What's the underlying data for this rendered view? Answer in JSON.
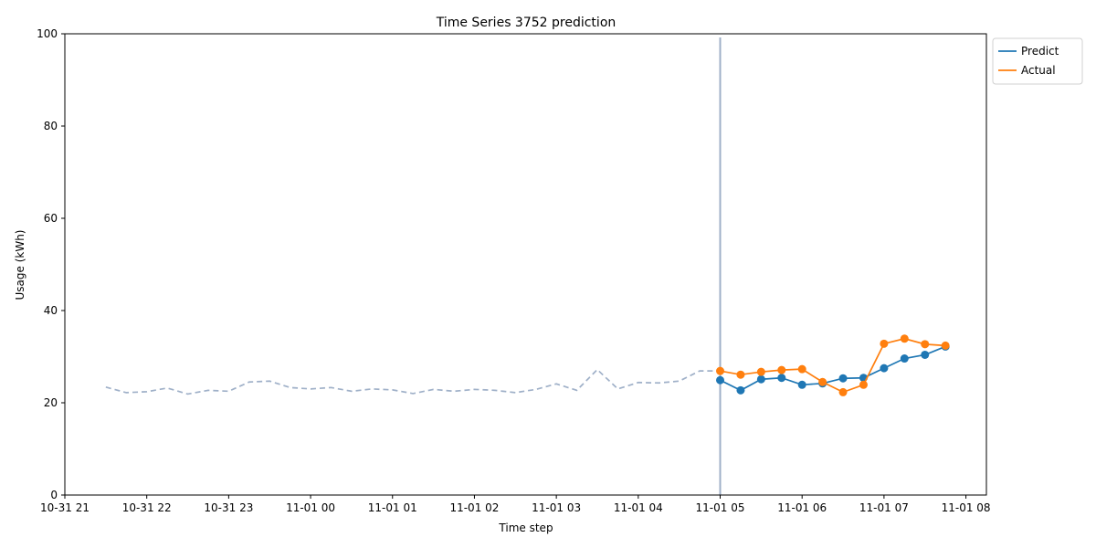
{
  "chart_data": {
    "type": "line",
    "title": "Time Series 3752 prediction",
    "xlabel": "Time step",
    "ylabel": "Usage (kWh)",
    "ylim": [
      0,
      100
    ],
    "xlim": [
      "2023-10-31 21:00",
      "2023-11-01 08:15"
    ],
    "x_ticks": [
      {
        "t": "2023-10-31 21:00",
        "label": "10-31 21"
      },
      {
        "t": "2023-10-31 22:00",
        "label": "10-31 22"
      },
      {
        "t": "2023-10-31 23:00",
        "label": "10-31 23"
      },
      {
        "t": "2023-11-01 00:00",
        "label": "11-01 00"
      },
      {
        "t": "2023-11-01 01:00",
        "label": "11-01 01"
      },
      {
        "t": "2023-11-01 02:00",
        "label": "11-01 02"
      },
      {
        "t": "2023-11-01 03:00",
        "label": "11-01 03"
      },
      {
        "t": "2023-11-01 04:00",
        "label": "11-01 04"
      },
      {
        "t": "2023-11-01 05:00",
        "label": "11-01 05"
      },
      {
        "t": "2023-11-01 06:00",
        "label": "11-01 06"
      },
      {
        "t": "2023-11-01 07:00",
        "label": "11-01 07"
      },
      {
        "t": "2023-11-01 08:00",
        "label": "11-01 08"
      }
    ],
    "y_ticks": [
      0,
      20,
      40,
      60,
      80,
      100
    ],
    "grid": false,
    "legend": "outside-top-right",
    "forecast_start": "2023-11-01 05:00",
    "series": [
      {
        "key": "history",
        "color": "#9fb0c8",
        "style": "dashed",
        "x": [
          "2023-10-31 21:30",
          "2023-10-31 21:45",
          "2023-10-31 22:00",
          "2023-10-31 22:15",
          "2023-10-31 22:30",
          "2023-10-31 22:45",
          "2023-10-31 23:00",
          "2023-10-31 23:15",
          "2023-10-31 23:30",
          "2023-10-31 23:45",
          "2023-11-01 00:00",
          "2023-11-01 00:15",
          "2023-11-01 00:30",
          "2023-11-01 00:45",
          "2023-11-01 01:00",
          "2023-11-01 01:15",
          "2023-11-01 01:30",
          "2023-11-01 01:45",
          "2023-11-01 02:00",
          "2023-11-01 02:15",
          "2023-11-01 02:30",
          "2023-11-01 02:45",
          "2023-11-01 03:00",
          "2023-11-01 03:15",
          "2023-11-01 03:30",
          "2023-11-01 03:45",
          "2023-11-01 04:00",
          "2023-11-01 04:15",
          "2023-11-01 04:30",
          "2023-11-01 04:45",
          "2023-11-01 05:00"
        ],
        "values": [
          23.4,
          22.2,
          22.4,
          23.2,
          21.9,
          22.7,
          22.5,
          24.5,
          24.7,
          23.3,
          23.0,
          23.3,
          22.5,
          23.0,
          22.8,
          22.0,
          22.9,
          22.5,
          22.9,
          22.7,
          22.2,
          22.9,
          24.1,
          22.7,
          27.2,
          23.0,
          24.4,
          24.3,
          24.7,
          26.9,
          26.9
        ]
      },
      {
        "key": "predict",
        "name": "Predict",
        "color": "#1f77b4",
        "style": "solid",
        "markers": true,
        "x": [
          "2023-11-01 05:00",
          "2023-11-01 05:15",
          "2023-11-01 05:30",
          "2023-11-01 05:45",
          "2023-11-01 06:00",
          "2023-11-01 06:15",
          "2023-11-01 06:30",
          "2023-11-01 06:45",
          "2023-11-01 07:00",
          "2023-11-01 07:15",
          "2023-11-01 07:30",
          "2023-11-01 07:45"
        ],
        "values": [
          24.9,
          22.7,
          25.1,
          25.4,
          23.9,
          24.2,
          25.3,
          25.4,
          27.5,
          29.6,
          30.4,
          32.2
        ]
      },
      {
        "key": "actual",
        "name": "Actual",
        "color": "#ff7f0e",
        "style": "solid",
        "markers": true,
        "x": [
          "2023-11-01 05:00",
          "2023-11-01 05:15",
          "2023-11-01 05:30",
          "2023-11-01 05:45",
          "2023-11-01 06:00",
          "2023-11-01 06:15",
          "2023-11-01 06:30",
          "2023-11-01 06:45",
          "2023-11-01 07:00",
          "2023-11-01 07:15",
          "2023-11-01 07:30",
          "2023-11-01 07:45"
        ],
        "values": [
          26.9,
          26.1,
          26.7,
          27.1,
          27.3,
          24.5,
          22.3,
          23.9,
          32.8,
          33.9,
          32.7,
          32.4
        ]
      }
    ],
    "forecast_line_color": "#9fb0c8"
  }
}
